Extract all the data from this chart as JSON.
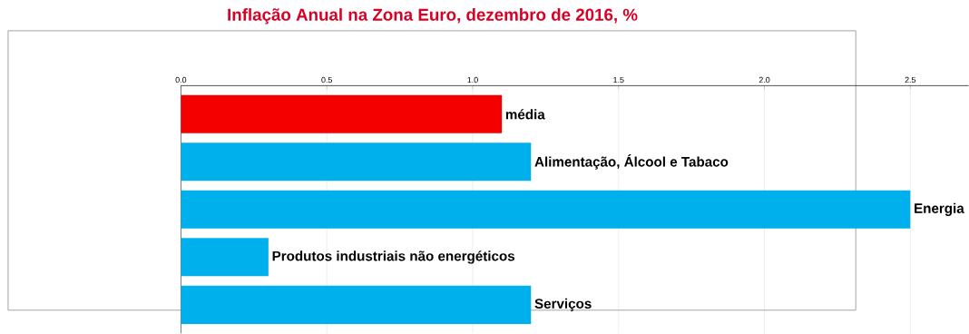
{
  "chart_data": {
    "type": "bar",
    "orientation": "horizontal",
    "title": "Inflação Anual na Zona Euro, dezembro de 2016, %",
    "categories": [
      "média",
      "Alimentação, Álcool e Tabaco",
      "Energia",
      "Produtos industriais não energéticos",
      "Serviços"
    ],
    "values": [
      1.1,
      1.2,
      2.5,
      0.3,
      1.2
    ],
    "colors": [
      "#f50000",
      "#00b0ec",
      "#00b0ec",
      "#00b0ec",
      "#00b0ec"
    ],
    "xlim": [
      0,
      2.7
    ],
    "xticks": [
      {
        "value": 0,
        "label": "0.0"
      },
      0.5,
      {
        "value": 1,
        "label": "1.0"
      },
      1.5,
      {
        "value": 2,
        "label": "2.0"
      },
      2.5
    ],
    "grid": "x"
  }
}
